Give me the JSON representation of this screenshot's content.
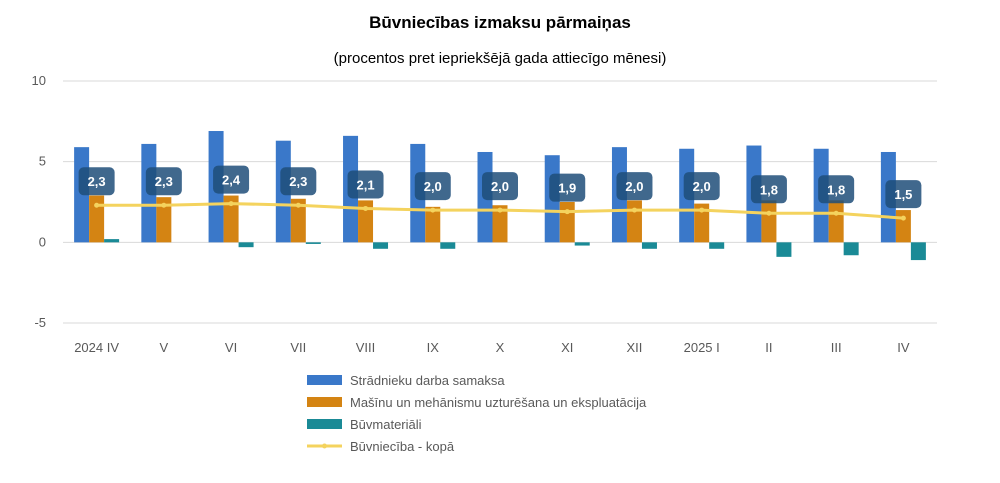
{
  "chart_data": {
    "type": "bar",
    "title": "Būvniecības izmaksu pārmaiņas",
    "subtitle": "(procentos pret iepriekšējā gada attiecīgo mēnesi)",
    "categories": [
      "2024 IV",
      "V",
      "VI",
      "VII",
      "VIII",
      "IX",
      "X",
      "XI",
      "XII",
      "2025 I",
      "II",
      "III",
      "IV"
    ],
    "ylim": [
      -5,
      10
    ],
    "yticks": [
      -5,
      0,
      5,
      10
    ],
    "grid": true,
    "legend_position": "bottom",
    "series": [
      {
        "name": "Strādnieku darba samaksa",
        "kind": "bar",
        "color": "#3a78c9",
        "values": [
          5.9,
          6.1,
          6.9,
          6.3,
          6.6,
          6.1,
          5.6,
          5.4,
          5.9,
          5.8,
          6.0,
          5.8,
          5.6
        ]
      },
      {
        "name": "Mašīnu un mehānismu uzturēšana un ekspluatācija",
        "kind": "bar",
        "color": "#d48413",
        "values": [
          2.9,
          2.8,
          2.9,
          2.7,
          2.6,
          2.2,
          2.3,
          2.5,
          2.6,
          2.4,
          2.6,
          2.6,
          2.0
        ]
      },
      {
        "name": "Būvmateriāli",
        "kind": "bar",
        "color": "#1a8a96",
        "values": [
          0.2,
          0.0,
          -0.3,
          -0.1,
          -0.4,
          -0.4,
          0.0,
          -0.2,
          -0.4,
          -0.4,
          -0.9,
          -0.8,
          -1.1
        ]
      },
      {
        "name": "Būvniecība - kopā",
        "kind": "line",
        "color": "#f4d35e",
        "values": [
          2.3,
          2.3,
          2.4,
          2.3,
          2.1,
          2.0,
          2.0,
          1.9,
          2.0,
          2.0,
          1.8,
          1.8,
          1.5
        ],
        "labels": [
          "2,3",
          "2,3",
          "2,4",
          "2,3",
          "2,1",
          "2,0",
          "2,0",
          "1,9",
          "2,0",
          "2,0",
          "1,8",
          "1,8",
          "1,5"
        ]
      }
    ],
    "label_box_color": "#1f4e79"
  }
}
